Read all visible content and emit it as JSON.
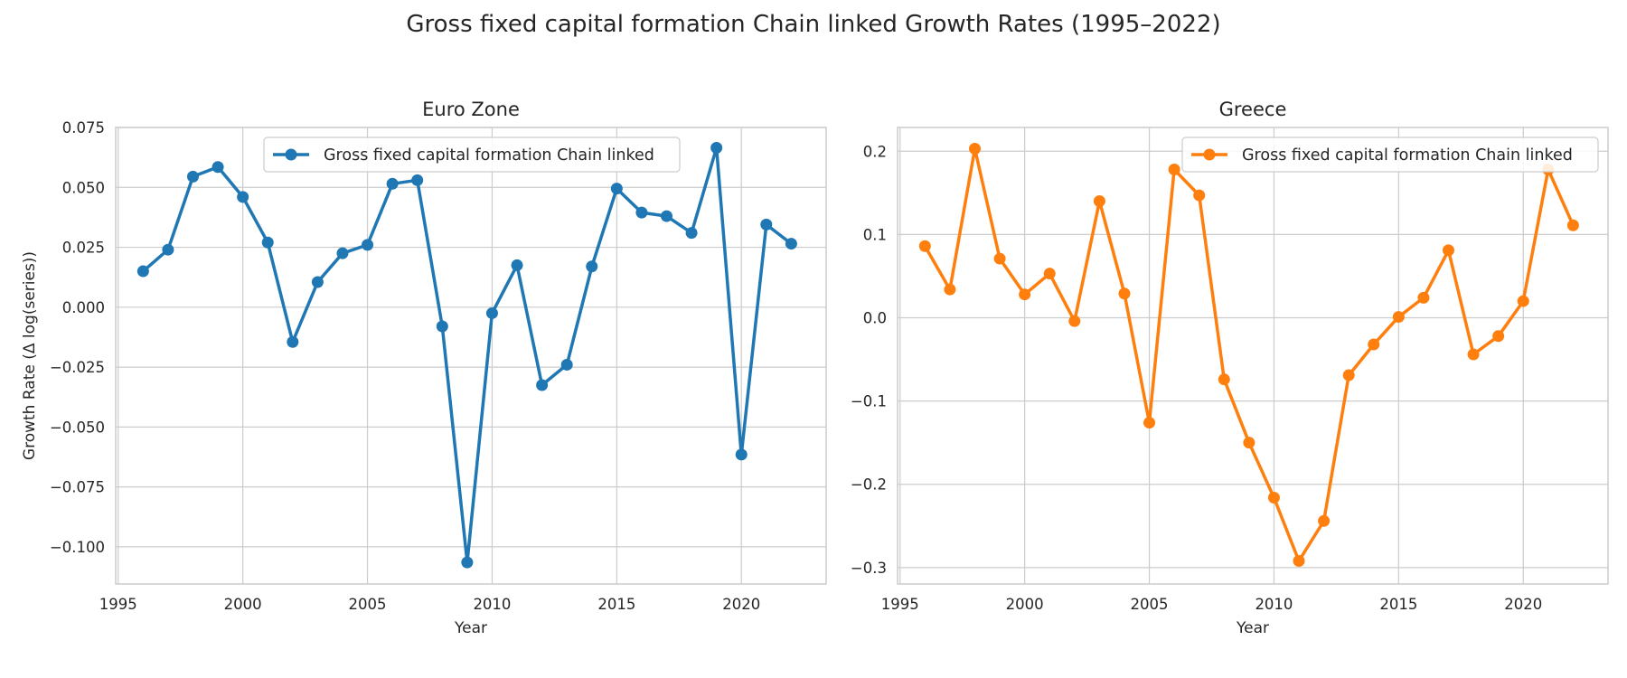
{
  "figure": {
    "title": "Gross fixed capital formation Chain linked Growth Rates (1995–2022)"
  },
  "chart_data": [
    {
      "type": "line",
      "title": "Euro Zone",
      "xlabel": "Year",
      "ylabel": "Growth Rate (Δ log(series))",
      "xlim": [
        1994.9,
        2023.4
      ],
      "ylim": [
        -0.1155,
        0.075
      ],
      "xticks": [
        1995,
        2000,
        2005,
        2010,
        2015,
        2020
      ],
      "xtick_labels": [
        "1995",
        "2000",
        "2005",
        "2010",
        "2015",
        "2020"
      ],
      "yticks": [
        0.075,
        0.05,
        0.025,
        0.0,
        -0.025,
        -0.05,
        -0.075,
        -0.1
      ],
      "ytick_labels": [
        "0.075",
        "0.050",
        "0.025",
        "0.000",
        "−0.025",
        "−0.050",
        "−0.075",
        "−0.100"
      ],
      "grid": true,
      "legend": "upper center",
      "color": "#1f77b4",
      "series": [
        {
          "name": "Gross fixed capital formation Chain linked",
          "x": [
            1996,
            1997,
            1998,
            1999,
            2000,
            2001,
            2002,
            2003,
            2004,
            2005,
            2006,
            2007,
            2008,
            2009,
            2010,
            2011,
            2012,
            2013,
            2014,
            2015,
            2016,
            2017,
            2018,
            2019,
            2020,
            2021,
            2022
          ],
          "y": [
            0.015,
            0.024,
            0.0545,
            0.0585,
            0.046,
            0.027,
            -0.0145,
            0.0105,
            0.0225,
            0.026,
            0.0515,
            0.053,
            -0.008,
            -0.1065,
            -0.0025,
            0.0175,
            -0.0325,
            -0.024,
            0.017,
            0.0495,
            0.0395,
            0.038,
            0.031,
            0.0665,
            -0.0615,
            0.0345,
            0.0265
          ]
        }
      ]
    },
    {
      "type": "line",
      "title": "Greece",
      "xlabel": "Year",
      "ylabel": "",
      "xlim": [
        1994.9,
        2023.4
      ],
      "ylim": [
        -0.3197,
        0.2285
      ],
      "xticks": [
        1995,
        2000,
        2005,
        2010,
        2015,
        2020
      ],
      "xtick_labels": [
        "1995",
        "2000",
        "2005",
        "2010",
        "2015",
        "2020"
      ],
      "yticks": [
        0.2,
        0.1,
        0.0,
        -0.1,
        -0.2,
        -0.3
      ],
      "ytick_labels": [
        "0.2",
        "0.1",
        "0.0",
        "−0.1",
        "−0.2",
        "−0.3"
      ],
      "grid": true,
      "legend": "upper right",
      "color": "#ff7f0e",
      "series": [
        {
          "name": "Gross fixed capital formation Chain linked",
          "x": [
            1996,
            1997,
            1998,
            1999,
            2000,
            2001,
            2002,
            2003,
            2004,
            2005,
            2006,
            2007,
            2008,
            2009,
            2010,
            2011,
            2012,
            2013,
            2014,
            2015,
            2016,
            2017,
            2018,
            2019,
            2020,
            2021,
            2022
          ],
          "y": [
            0.086,
            0.034,
            0.203,
            0.071,
            0.028,
            0.053,
            -0.004,
            0.14,
            0.029,
            -0.126,
            0.178,
            0.147,
            -0.074,
            -0.15,
            -0.216,
            -0.292,
            -0.244,
            -0.069,
            -0.032,
            0.001,
            0.024,
            0.081,
            -0.044,
            -0.022,
            0.02,
            0.178,
            0.111
          ]
        }
      ]
    }
  ]
}
